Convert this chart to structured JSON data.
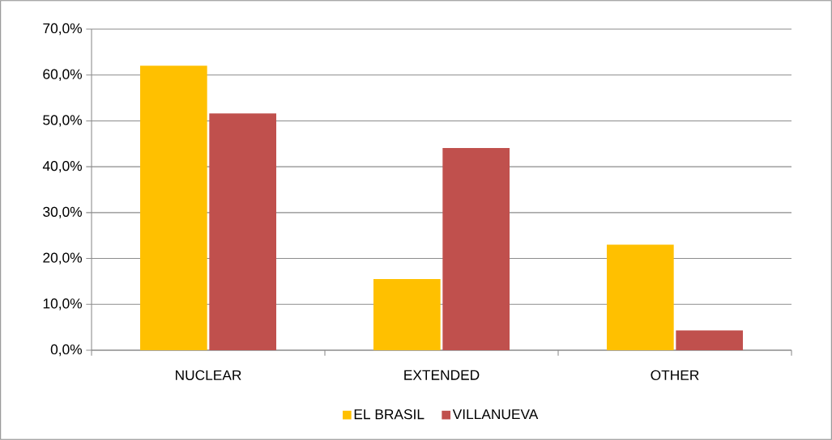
{
  "chart_data": {
    "type": "bar",
    "categories": [
      "NUCLEAR",
      "EXTENDED",
      "OTHER"
    ],
    "series": [
      {
        "name": "EL BRASIL",
        "color": "#ffc000",
        "values": [
          62.0,
          15.5,
          23.0
        ]
      },
      {
        "name": "VILLANUEVA",
        "color": "#c0504d",
        "values": [
          51.6,
          44.1,
          4.3
        ]
      }
    ],
    "ylim": [
      0,
      70
    ],
    "yticks": [
      {
        "value": 0,
        "label": "0,0%"
      },
      {
        "value": 10,
        "label": "10,0%"
      },
      {
        "value": 20,
        "label": "20,0%"
      },
      {
        "value": 30,
        "label": "30,0%"
      },
      {
        "value": 40,
        "label": "40,0%"
      },
      {
        "value": 50,
        "label": "50,0%"
      },
      {
        "value": 60,
        "label": "60,0%"
      },
      {
        "value": 70,
        "label": "70,0%"
      }
    ],
    "grid": "y",
    "legend": "bottom"
  }
}
